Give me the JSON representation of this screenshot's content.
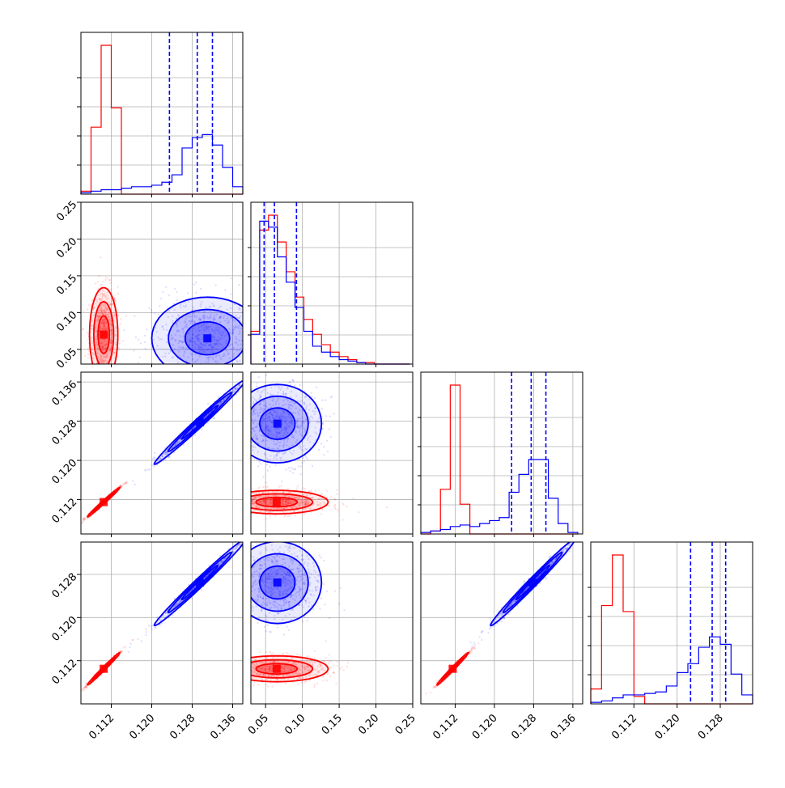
{
  "chart_data": {
    "type": "corner",
    "variables": [
      "",
      "",
      "",
      ""
    ],
    "colors": {
      "series_a": "#ff0000",
      "series_b": "#0000ff",
      "grid": "#b0b0b0"
    },
    "grid": true,
    "ranges": [
      [
        0.106,
        0.138
      ],
      [
        0.03,
        0.25
      ],
      [
        0.105,
        0.138
      ],
      [
        0.104,
        0.134
      ]
    ],
    "ticks": {
      "v0": [
        "0.112",
        "0.120",
        "0.128",
        "0.136"
      ],
      "v1": [
        "0.05",
        "0.10",
        "0.15",
        "0.20",
        "0.25"
      ],
      "v2": [
        "0.112",
        "0.120",
        "0.128",
        "0.136"
      ],
      "v3": [
        "0.112",
        "0.120",
        "0.128"
      ]
    },
    "tick_values": {
      "v0": [
        0.112,
        0.12,
        0.128,
        0.136
      ],
      "v1": [
        0.05,
        0.1,
        0.15,
        0.2,
        0.25
      ],
      "v2": [
        0.112,
        0.12,
        0.128,
        0.136
      ],
      "v3": [
        0.112,
        0.12,
        0.128
      ]
    },
    "quantiles_series_b": [
      [
        0.1235,
        0.129,
        0.132
      ],
      [
        0.048,
        0.062,
        0.092
      ],
      [
        0.1235,
        0.1275,
        0.1305
      ],
      [
        0.1225,
        0.1265,
        0.129
      ]
    ],
    "histograms": [
      {
        "edges": [
          0.106,
          0.108,
          0.11,
          0.112,
          0.114,
          0.116,
          0.118,
          0.12,
          0.122,
          0.124,
          0.126,
          0.128,
          0.13,
          0.132,
          0.134,
          0.136,
          0.138
        ],
        "series_a": [
          0.02,
          0.45,
          1.0,
          0.58,
          0,
          0,
          0,
          0,
          0,
          0,
          0,
          0,
          0,
          0,
          0,
          0
        ],
        "series_b": [
          0.01,
          0.02,
          0.03,
          0.03,
          0.04,
          0.05,
          0.05,
          0.06,
          0.08,
          0.13,
          0.31,
          0.38,
          0.4,
          0.33,
          0.18,
          0.05
        ]
      },
      {
        "edges": [
          0.03,
          0.042,
          0.054,
          0.066,
          0.078,
          0.09,
          0.102,
          0.114,
          0.126,
          0.138,
          0.15,
          0.162,
          0.174,
          0.186,
          0.198,
          0.21,
          0.222,
          0.234,
          0.246
        ],
        "series_a": [
          0.22,
          0.9,
          1.0,
          0.82,
          0.62,
          0.45,
          0.3,
          0.2,
          0.13,
          0.08,
          0.05,
          0.03,
          0.01,
          0.01,
          0,
          0,
          0,
          0
        ],
        "series_b": [
          0.2,
          0.96,
          0.92,
          0.72,
          0.55,
          0.38,
          0.22,
          0.12,
          0.08,
          0.05,
          0.03,
          0.02,
          0.01,
          0,
          0,
          0,
          0,
          0
        ]
      },
      {
        "edges": [
          0.105,
          0.107,
          0.109,
          0.111,
          0.113,
          0.115,
          0.117,
          0.119,
          0.121,
          0.123,
          0.125,
          0.127,
          0.129,
          0.131,
          0.133,
          0.135,
          0.137
        ],
        "series_a": [
          0,
          0.02,
          0.3,
          1.0,
          0.2,
          0,
          0,
          0,
          0,
          0,
          0,
          0,
          0,
          0,
          0,
          0
        ],
        "series_b": [
          0.01,
          0.02,
          0.03,
          0.05,
          0.06,
          0.05,
          0.07,
          0.09,
          0.11,
          0.28,
          0.4,
          0.5,
          0.5,
          0.24,
          0.07,
          0.01
        ]
      },
      {
        "edges": [
          0.104,
          0.106,
          0.108,
          0.11,
          0.112,
          0.114,
          0.116,
          0.118,
          0.12,
          0.122,
          0.124,
          0.126,
          0.128,
          0.13,
          0.132,
          0.134
        ],
        "series_a": [
          0.1,
          0.66,
          1.0,
          0.62,
          0.05,
          0,
          0,
          0,
          0,
          0,
          0,
          0,
          0,
          0,
          0
        ],
        "series_b": [
          0.01,
          0.02,
          0.04,
          0.06,
          0.06,
          0.07,
          0.08,
          0.12,
          0.21,
          0.27,
          0.38,
          0.45,
          0.4,
          0.2,
          0.06
        ]
      }
    ],
    "scatter": [
      {
        "row": 1,
        "col": 0,
        "series_a": {
          "center": [
            0.1105,
            0.07
          ],
          "spread": [
            0.0014,
            0.032
          ],
          "corr": 0.0
        },
        "series_b": {
          "center": [
            0.131,
            0.065
          ],
          "spread": [
            0.0055,
            0.028
          ],
          "corr": 0.0
        }
      },
      {
        "row": 2,
        "col": 0,
        "series_a": {
          "center": [
            0.1105,
            0.1115
          ],
          "spread": [
            0.0016,
            0.0015
          ],
          "corr": 0.99
        },
        "series_b": {
          "center": [
            0.1295,
            0.1278
          ],
          "spread": [
            0.0045,
            0.0043
          ],
          "corr": 0.99
        }
      },
      {
        "row": 2,
        "col": 1,
        "series_a": {
          "center": [
            0.065,
            0.1115
          ],
          "spread": [
            0.035,
            0.0012
          ],
          "corr": 0.0
        },
        "series_b": {
          "center": [
            0.066,
            0.1275
          ],
          "spread": [
            0.03,
            0.004
          ],
          "corr": 0.0
        }
      },
      {
        "row": 3,
        "col": 0,
        "series_a": {
          "center": [
            0.1105,
            0.1105
          ],
          "spread": [
            0.0016,
            0.0015
          ],
          "corr": 0.99
        },
        "series_b": {
          "center": [
            0.1295,
            0.1265
          ],
          "spread": [
            0.0045,
            0.004
          ],
          "corr": 0.99
        }
      },
      {
        "row": 3,
        "col": 1,
        "series_a": {
          "center": [
            0.065,
            0.1105
          ],
          "spread": [
            0.035,
            0.0012
          ],
          "corr": 0.0
        },
        "series_b": {
          "center": [
            0.066,
            0.1265
          ],
          "spread": [
            0.03,
            0.0038
          ],
          "corr": 0.0
        }
      },
      {
        "row": 3,
        "col": 2,
        "series_a": {
          "center": [
            0.1115,
            0.1105
          ],
          "spread": [
            0.0016,
            0.0015
          ],
          "corr": 0.99
        },
        "series_b": {
          "center": [
            0.1278,
            0.1265
          ],
          "spread": [
            0.0043,
            0.004
          ],
          "corr": 0.99
        }
      }
    ]
  }
}
